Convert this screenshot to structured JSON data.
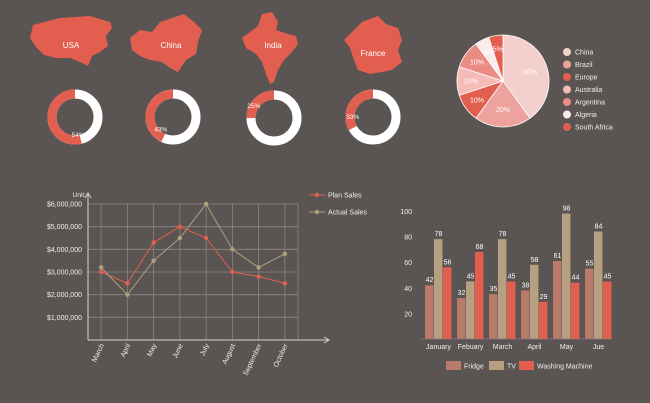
{
  "colors": {
    "background": "#5a5452",
    "map": "#e25f50",
    "ring_track": "#ffffff",
    "axis": "#d9d2cf",
    "grid": "#8d8684",
    "label": "#f3eeec",
    "plan": "#e25f50",
    "actual": "#b0a17e",
    "fridge": "#b97a6b",
    "tv": "#b6a07f",
    "washing": "#e25f50"
  },
  "maps": [
    {
      "label": "USA",
      "icon": "usa-map-icon"
    },
    {
      "label": "China",
      "icon": "china-map-icon"
    },
    {
      "label": "India",
      "icon": "india-map-icon"
    },
    {
      "label": "France",
      "icon": "france-map-icon"
    }
  ],
  "chart_data": [
    {
      "type": "donut",
      "name": "usa-progress",
      "values": [
        54
      ],
      "labels": [
        "54%"
      ]
    },
    {
      "type": "donut",
      "name": "china-progress",
      "values": [
        43
      ],
      "labels": [
        "43%"
      ]
    },
    {
      "type": "donut",
      "name": "india-progress",
      "values": [
        25
      ],
      "labels": [
        "25%"
      ]
    },
    {
      "type": "donut",
      "name": "france-progress",
      "values": [
        33
      ],
      "labels": [
        "33%"
      ]
    },
    {
      "type": "pie",
      "categories": [
        "China",
        "Brazil",
        "Europe",
        "Australia",
        "Argentina",
        "Algeria",
        "South Africa"
      ],
      "values": [
        40,
        20,
        10,
        10,
        10,
        5,
        5
      ],
      "labels": [
        "40%",
        "20%",
        "10%",
        "10%",
        "10%",
        "5%",
        "5%"
      ],
      "colors": [
        "#f3cfcd",
        "#eea29d",
        "#e25f50",
        "#f5bbb7",
        "#ea8b84",
        "#fcebea",
        "#e25f50"
      ],
      "legend": "right"
    },
    {
      "type": "line",
      "ylabel": "Unit",
      "categories": [
        "March",
        "April",
        "May",
        "June",
        "July",
        "August",
        "September",
        "October"
      ],
      "ylim": [
        0,
        6000000
      ],
      "yticks": [
        "$1,000,000",
        "$2,000,000",
        "$3,000,000",
        "$4,000,000",
        "$5,000,000",
        "$6,000,000"
      ],
      "grid": true,
      "legend": "top-right",
      "series": [
        {
          "name": "Plan Sales",
          "values": [
            3000000,
            2500000,
            4300000,
            5000000,
            4500000,
            3000000,
            2800000,
            2500000
          ]
        },
        {
          "name": "Actual Sales",
          "values": [
            3200000,
            2000000,
            3500000,
            4500000,
            6000000,
            4000000,
            3200000,
            3800000
          ]
        }
      ]
    },
    {
      "type": "bar",
      "categories": [
        "January",
        "Febuary",
        "March",
        "April",
        "May",
        "Jue"
      ],
      "ylim": [
        0,
        100
      ],
      "yticks": [
        "20",
        "40",
        "60",
        "80",
        "100"
      ],
      "legend": "bottom",
      "series": [
        {
          "name": "Fridge",
          "values": [
            42,
            32,
            35,
            38,
            61,
            55
          ]
        },
        {
          "name": "TV",
          "values": [
            78,
            45,
            78,
            58,
            98,
            84
          ]
        },
        {
          "name": "Washing Machine",
          "values": [
            56,
            68,
            45,
            29,
            44,
            45
          ]
        }
      ]
    }
  ]
}
